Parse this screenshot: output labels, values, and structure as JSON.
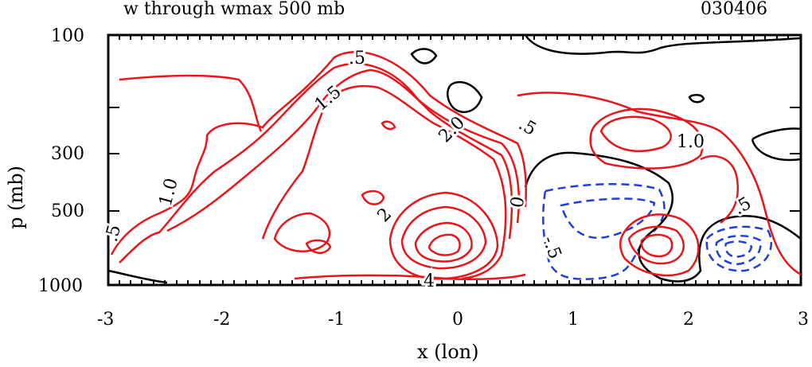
{
  "chart_data": {
    "type": "contour",
    "title": "w through wmax 500 mb",
    "date_label": "030406",
    "xlabel": "x (lon)",
    "ylabel": "p (mb)",
    "x_ticks": [
      "-3",
      "-2",
      "-1",
      "0",
      "1",
      "2",
      "3"
    ],
    "y_ticks": [
      "100",
      "300",
      "500",
      "1000"
    ],
    "xlim": [
      -3,
      3
    ],
    "ylim": [
      1000,
      100
    ],
    "contour_labels": [
      ".5",
      "1.5",
      "2.0",
      ".5",
      "1.0",
      "1.0",
      ".5",
      "2",
      "4",
      "0",
      "-.5",
      ".5"
    ],
    "colors": {
      "positive": "#e8161b",
      "negative": "#1f3fd6",
      "zero": "#000000"
    }
  }
}
